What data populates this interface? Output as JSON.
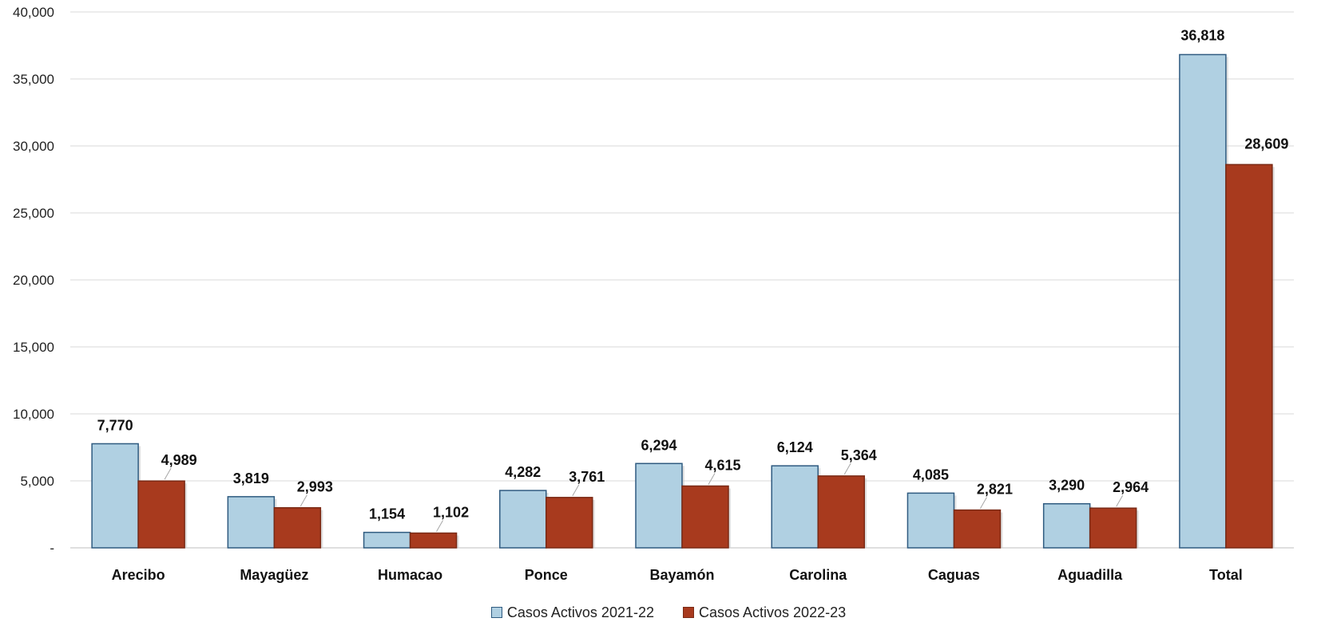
{
  "chart_data": {
    "type": "bar",
    "categories": [
      "Arecibo",
      "Mayagüez",
      "Humacao",
      "Ponce",
      "Bayamón",
      "Carolina",
      "Caguas",
      "Aguadilla",
      "Total"
    ],
    "series": [
      {
        "name": "Casos Activos 2021-22",
        "color": "#b0d0e2",
        "border": "#2f5b80",
        "values": [
          7770,
          3819,
          1154,
          4282,
          6294,
          6124,
          4085,
          3290,
          36818
        ],
        "labels": [
          "7,770",
          "3,819",
          "1,154",
          "4,282",
          "6,294",
          "6,124",
          "4,085",
          "3,290",
          "36,818"
        ]
      },
      {
        "name": "Casos Activos 2022-23",
        "color": "#a83a1e",
        "border": "#7a2a15",
        "values": [
          4989,
          2993,
          1102,
          3761,
          4615,
          5364,
          2821,
          2964,
          28609
        ],
        "labels": [
          "4,989",
          "2,993",
          "1,102",
          "3,761",
          "4,615",
          "5,364",
          "2,821",
          "2,964",
          "28,609"
        ]
      }
    ],
    "yticks": [
      0,
      5000,
      10000,
      15000,
      20000,
      25000,
      30000,
      35000,
      40000
    ],
    "ytick_labels": [
      "-",
      "5,000",
      "10,000",
      "15,000",
      "20,000",
      "25,000",
      "30,000",
      "35,000",
      "40,000"
    ],
    "ylim": [
      0,
      40000
    ],
    "grid": true,
    "legend_position": "bottom"
  }
}
